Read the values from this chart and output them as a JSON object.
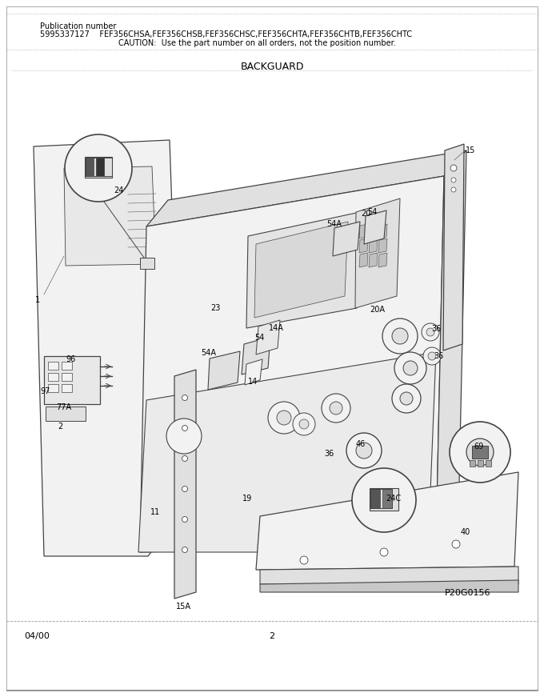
{
  "pub_line1": "Publication number",
  "pub_line2": "5995337127    FEF356CHSA,FEF356CHSB,FEF356CHSC,FEF356CHTA,FEF356CHTB,FEF356CHTC",
  "pub_line3": "CAUTION:  Use the part number on all orders, not the position number.",
  "title": "BACKGUARD",
  "part_id": "P20G0156",
  "date": "04/00",
  "page": "2",
  "bg_color": "#ffffff",
  "tc": "#000000",
  "dc": "#444444",
  "lc": "#888888",
  "fc_light": "#f2f2f2",
  "fc_mid": "#e0e0e0",
  "fc_dark": "#c8c8c8"
}
